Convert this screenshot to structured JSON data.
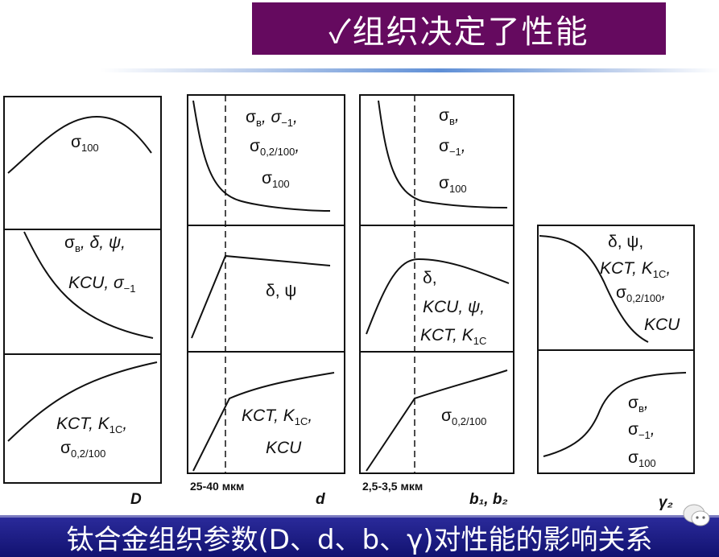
{
  "header": {
    "title": "✓组织决定了性能"
  },
  "footer": {
    "caption": "钛合金组织参数(D、d、b、γ)对性能的影响关系"
  },
  "colors": {
    "title_bg": "#650a5f",
    "footer_bg": "#1a1a80",
    "divider": "#5f8fd6"
  },
  "icons": {
    "watermark": "wechat-icon"
  },
  "panels": [
    {
      "axis_label": "D",
      "sections": [
        {
          "label": [
            [
              "σ",
              "100"
            ]
          ]
        },
        {
          "label": [
            [
              "σ",
              "в",
              ", δ, ψ,"
            ],
            [
              "KCU, σ",
              "−1"
            ]
          ]
        },
        {
          "label": [
            [
              "KCT, K",
              "1C",
              ","
            ],
            [
              "σ",
              "0,2/100"
            ]
          ]
        }
      ]
    },
    {
      "axis_label": "d",
      "marker_label": "25-40 мкм",
      "sections": [
        {
          "label": [
            [
              "σ",
              "в",
              ", σ",
              "−1",
              ","
            ],
            [
              "σ",
              "0,2/100",
              ","
            ],
            [
              "σ",
              "100"
            ]
          ]
        },
        {
          "label": [
            [
              "δ, ψ"
            ]
          ]
        },
        {
          "label": [
            [
              "KCT, K",
              "1C",
              ","
            ],
            [
              "KCU"
            ]
          ]
        }
      ]
    },
    {
      "axis_label": "b₁, b₂",
      "marker_label": "2,5-3,5 мкм",
      "sections": [
        {
          "label": [
            [
              "σ",
              "в",
              ","
            ],
            [
              "σ",
              "−1",
              ","
            ],
            [
              "σ",
              "100"
            ]
          ]
        },
        {
          "label": [
            [
              "δ,"
            ],
            [
              "KCU, ψ,"
            ],
            [
              "KCT, K",
              "1C"
            ]
          ]
        },
        {
          "label": [
            [
              "σ",
              "0,2/100"
            ]
          ]
        }
      ]
    },
    {
      "axis_label": "γ₂",
      "sections": [
        {
          "label": [
            [
              "δ, ψ,"
            ],
            [
              "KCT, K",
              "1C",
              ","
            ],
            [
              "σ",
              "0,2/100",
              ","
            ],
            [
              "KCU"
            ]
          ]
        },
        {
          "label": [
            [
              "σ",
              "в",
              ","
            ],
            [
              "σ",
              "−1",
              ","
            ],
            [
              "σ",
              "100"
            ]
          ]
        }
      ]
    }
  ]
}
